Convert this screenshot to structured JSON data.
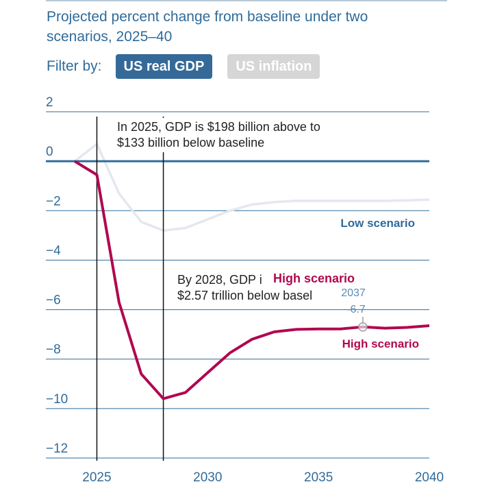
{
  "header": {
    "title_line1": "Projected percent change from baseline under two",
    "title_line2": "scenarios, 2025–40"
  },
  "filter": {
    "label": "Filter by:",
    "options": [
      {
        "label": "US real GDP",
        "active": true
      },
      {
        "label": "US inflation",
        "active": false
      }
    ]
  },
  "colors": {
    "high": "#b0084f",
    "low": "#e4e8ee",
    "grid": "#2f6b9a",
    "zero_line": "#2f6b9a",
    "tick_text": "#2f6b9a",
    "button_active": "#356a98",
    "button_inactive": "#d6d6d6"
  },
  "chart_data": {
    "type": "line",
    "xlim": [
      2022.7,
      2040
    ],
    "ylim": [
      -12.5,
      2.5
    ],
    "x_ticks": [
      2025,
      2030,
      2035,
      2040
    ],
    "y_ticks": [
      2,
      0,
      -2,
      -4,
      -6,
      -8,
      -10,
      -12
    ],
    "y_tick_labels": [
      "2",
      "0",
      "−2",
      "−4",
      "−6",
      "−8",
      "−10",
      "−12"
    ],
    "series": [
      {
        "name": "Low scenario",
        "x": [
          2024,
          2025,
          2026,
          2027,
          2028,
          2029,
          2030,
          2031,
          2032,
          2033,
          2034,
          2035,
          2036,
          2037,
          2038,
          2039,
          2040
        ],
        "values": [
          0,
          0.7,
          -1.3,
          -2.45,
          -2.8,
          -2.7,
          -2.35,
          -2.0,
          -1.75,
          -1.65,
          -1.6,
          -1.6,
          -1.6,
          -1.6,
          -1.6,
          -1.58,
          -1.55
        ]
      },
      {
        "name": "High scenario",
        "x": [
          2024,
          2025,
          2026,
          2027,
          2028,
          2029,
          2030,
          2031,
          2032,
          2033,
          2034,
          2035,
          2036,
          2037,
          2038,
          2039,
          2040
        ],
        "values": [
          0,
          -0.55,
          -5.7,
          -8.6,
          -9.6,
          -9.35,
          -8.55,
          -7.75,
          -7.2,
          -6.9,
          -6.8,
          -6.78,
          -6.78,
          -6.7,
          -6.75,
          -6.72,
          -6.65
        ]
      }
    ],
    "reference_lines_x": [
      2025,
      2028
    ],
    "annotations": [
      {
        "line1": "In 2025, GDP is $198 billion above to",
        "line2": "$133 billion below baseline"
      },
      {
        "line1": "By 2028, GDP i",
        "line2": "$2.57 trillion below basel"
      }
    ],
    "series_labels": {
      "low": "Low scenario",
      "high": "High scenario"
    },
    "tooltip": {
      "series_label": "High scenario",
      "year": "2037",
      "value": "-6.7",
      "x": 2037,
      "y": -6.7
    }
  }
}
